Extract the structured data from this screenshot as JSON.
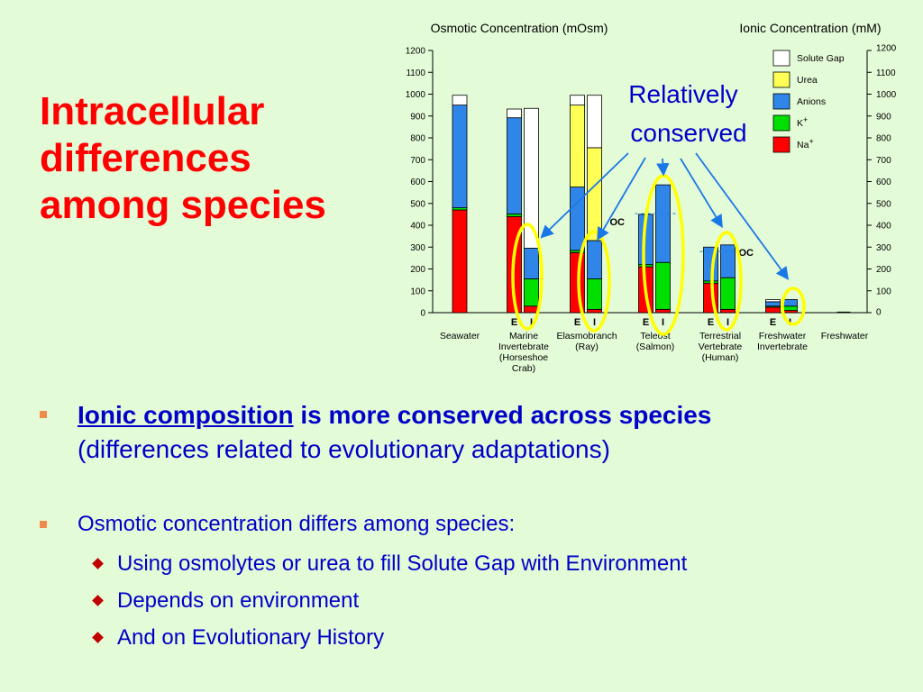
{
  "slide": {
    "title": "Intracellular differences among species"
  },
  "bullets": {
    "main": {
      "emphasis_underlined": "Ionic composition",
      "emphasis_rest": " is more conserved across species",
      "detail": "(differences related to evolutionary adaptations)"
    },
    "second": {
      "text": "Osmotic concentration differs among species:",
      "items": [
        "Using osmolytes or urea to fill Solute Gap with Environment",
        "Depends on environment",
        "And on Evolutionary History"
      ]
    }
  },
  "chart_data": {
    "type": "bar",
    "stacked": true,
    "left_axis_title": "Osmotic Concentration (mOsm)",
    "right_axis_title": "Ionic Concentration (mM)",
    "ylim": [
      0,
      1200
    ],
    "yticks": [
      0,
      100,
      200,
      300,
      400,
      500,
      600,
      700,
      800,
      900,
      1000,
      1100,
      1200
    ],
    "components": [
      {
        "key": "na",
        "name": "Na+",
        "color": "#ff0000"
      },
      {
        "key": "k",
        "name": "K+",
        "color": "#00e000"
      },
      {
        "key": "anions",
        "name": "Anions",
        "color": "#2f86e8"
      },
      {
        "key": "urea",
        "name": "Urea",
        "color": "#ffff55"
      },
      {
        "key": "gap",
        "name": "Solute Gap",
        "color": "#ffffff"
      }
    ],
    "legend_order": [
      "gap",
      "urea",
      "anions",
      "k",
      "na"
    ],
    "legend_labels": {
      "gap": "Solute Gap",
      "urea": "Urea",
      "anions": "Anions",
      "k": "K",
      "na": "Na"
    },
    "legend_sup": {
      "k": "+",
      "na": "+"
    },
    "legend_placement": "top-right",
    "groups": [
      {
        "label": [
          "Seawater"
        ],
        "bars": [
          {
            "tag": "",
            "na": 470,
            "k": 10,
            "anions": 470,
            "urea": 0,
            "gap": 45
          }
        ]
      },
      {
        "label": [
          "Marine",
          "Invertebrate",
          "(Horseshoe",
          "Crab)"
        ],
        "bars": [
          {
            "tag": "E",
            "na": 440,
            "k": 12,
            "anions": 440,
            "urea": 0,
            "gap": 40
          },
          {
            "tag": "I",
            "na": 30,
            "k": 125,
            "anions": 140,
            "urea": 0,
            "gap": 640
          }
        ]
      },
      {
        "label": [
          "Elasmobranch",
          "(Ray)"
        ],
        "bars": [
          {
            "tag": "E",
            "na": 275,
            "k": 10,
            "anions": 290,
            "urea": 375,
            "gap": 45
          },
          {
            "tag": "I",
            "na": 15,
            "k": 140,
            "anions": 175,
            "urea": 425,
            "gap": 240
          }
        ]
      },
      {
        "label": [
          "Teleost",
          "(Salmon)"
        ],
        "bars": [
          {
            "tag": "E",
            "na": 210,
            "k": 10,
            "anions": 230,
            "urea": 0,
            "gap": 0
          },
          {
            "tag": "I",
            "na": 15,
            "k": 215,
            "anions": 355,
            "urea": 0,
            "gap": 0
          }
        ]
      },
      {
        "label": [
          "Terrestrial",
          "Vertebrate",
          "(Human)"
        ],
        "bars": [
          {
            "tag": "E",
            "na": 135,
            "k": 10,
            "anions": 155,
            "urea": 0,
            "gap": 0
          },
          {
            "tag": "I",
            "na": 15,
            "k": 145,
            "anions": 150,
            "urea": 0,
            "gap": 0
          }
        ]
      },
      {
        "label": [
          "Freshwater",
          "Invertebrate"
        ],
        "bars": [
          {
            "tag": "E",
            "na": 25,
            "k": 5,
            "anions": 20,
            "urea": 0,
            "gap": 10
          },
          {
            "tag": "I",
            "na": 10,
            "k": 20,
            "anions": 30,
            "urea": 0,
            "gap": 0
          }
        ]
      },
      {
        "label": [
          "Freshwater"
        ],
        "bars": [
          {
            "tag": "",
            "na": 0,
            "k": 0,
            "anions": 3,
            "urea": 0,
            "gap": 0
          }
        ]
      }
    ],
    "oc_labels": [
      {
        "text": "OC",
        "group": 3,
        "value": 420
      },
      {
        "text": "OC",
        "group": 4,
        "value": 280
      }
    ],
    "annotation": {
      "text": [
        "Relatively",
        "conserved"
      ],
      "highlighted_bars": [
        [
          1,
          1
        ],
        [
          2,
          1
        ],
        [
          3,
          0
        ],
        [
          3,
          1
        ],
        [
          4,
          1
        ],
        [
          5,
          1
        ]
      ]
    },
    "colors": {
      "annotation": "#0000c8",
      "highlight_ellipse": "#ffff00",
      "arrow": "#1a78e6",
      "oc_line": "#1a78e6"
    }
  }
}
